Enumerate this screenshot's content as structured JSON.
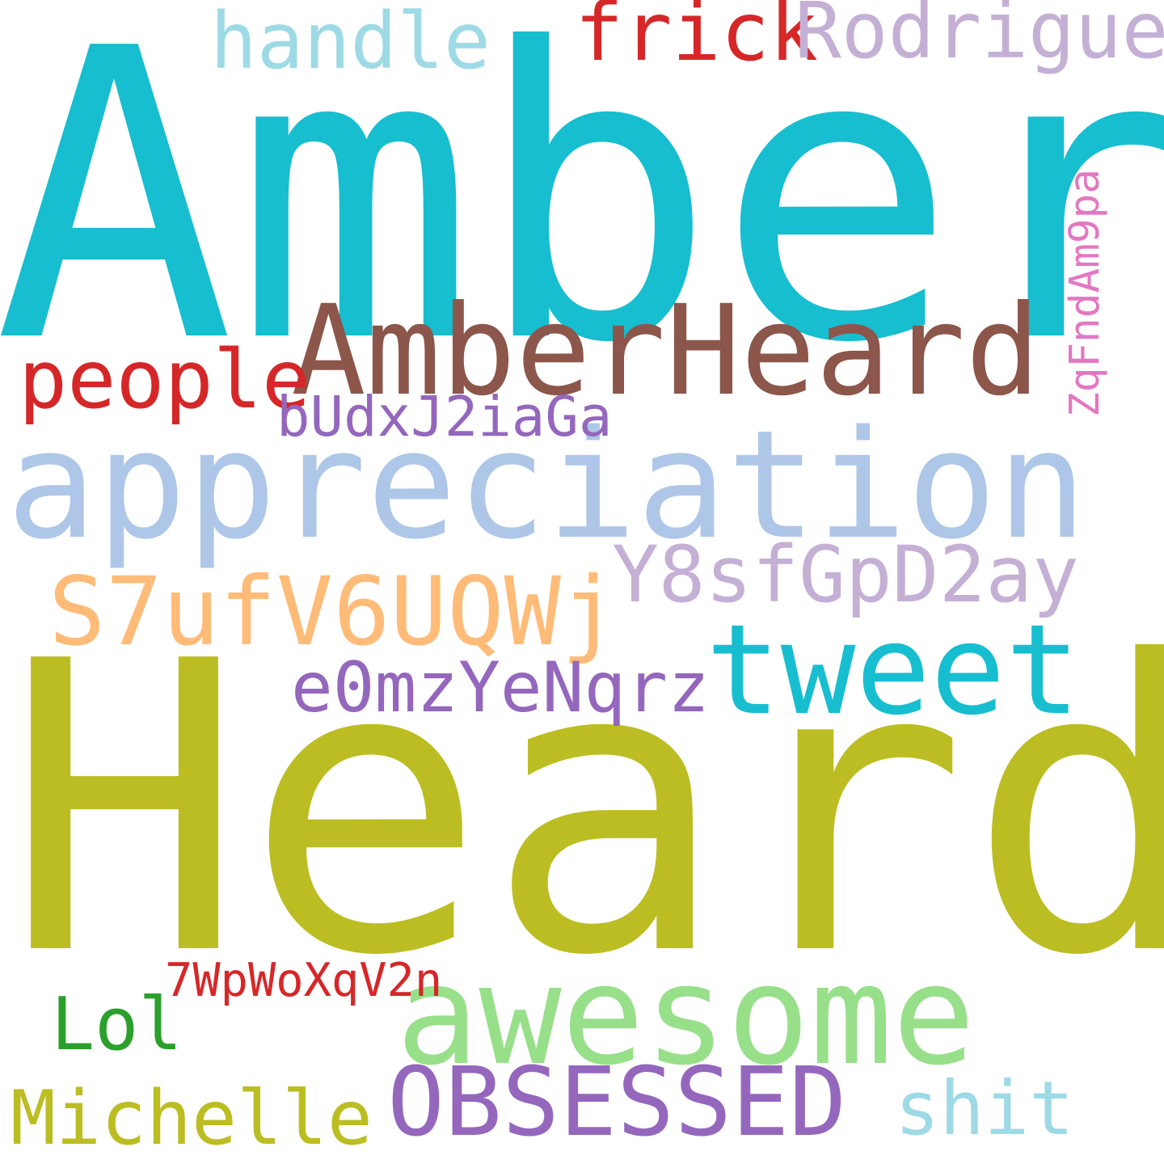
{
  "words": [
    {
      "text": "Amber",
      "color": "#17becf"
    },
    {
      "text": "Heard",
      "color": "#bcbd22"
    },
    {
      "text": "appreciation",
      "color": "#aec7e8"
    },
    {
      "text": "AmberHeard",
      "color": "#8c564b"
    },
    {
      "text": "awesome",
      "color": "#98df8a"
    },
    {
      "text": "tweet",
      "color": "#17becf"
    },
    {
      "text": "OBSESSED",
      "color": "#9467bd"
    },
    {
      "text": "S7ufV6UQWj",
      "color": "#ffbb78"
    },
    {
      "text": "Y8sfGpD2ay",
      "color": "#c5b0d5"
    },
    {
      "text": "people",
      "color": "#d62728"
    },
    {
      "text": "frick",
      "color": "#d62728"
    },
    {
      "text": "handle",
      "color": "#9edae5"
    },
    {
      "text": "Rodriguez",
      "color": "#c5b0d5"
    },
    {
      "text": "e0mzYeNqrz",
      "color": "#9467bd"
    },
    {
      "text": "bUdxJ2iaGa",
      "color": "#9467bd"
    },
    {
      "text": "Lol",
      "color": "#2ca02c"
    },
    {
      "text": "Michelle",
      "color": "#bcbd22"
    },
    {
      "text": "shit",
      "color": "#9edae5"
    },
    {
      "text": "7WpWoXqV2n",
      "color": "#d62728"
    },
    {
      "text": "ZqFndAm9pa",
      "color": "#e377c2"
    }
  ]
}
